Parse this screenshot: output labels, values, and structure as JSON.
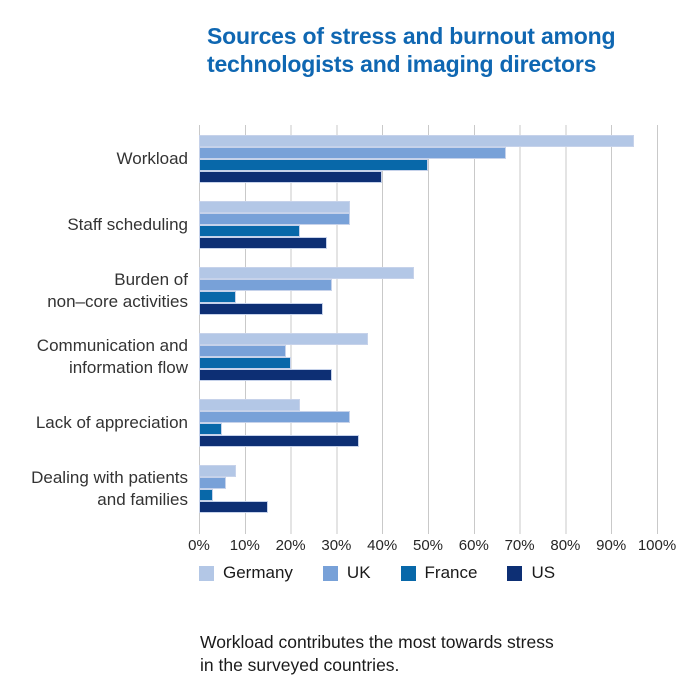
{
  "header": {
    "title_line1": "Sources of stress and burnout among",
    "title_line2": "technologists and imaging directors",
    "title_color": "#0f67b2"
  },
  "chart_data": {
    "type": "bar",
    "orientation": "horizontal",
    "title": "Sources of stress and burnout among technologists and imaging directors",
    "categories": [
      "Workload",
      "Staff scheduling",
      "Burden of non–core activities",
      "Communication and information flow",
      "Lack of appreciation",
      "Dealing with patients and families"
    ],
    "category_label_lines": [
      [
        "Workload"
      ],
      [
        "Staff scheduling"
      ],
      [
        "Burden of",
        "non–core activities"
      ],
      [
        "Communication and",
        "information flow"
      ],
      [
        "Lack of appreciation"
      ],
      [
        "Dealing with patients",
        "and families"
      ]
    ],
    "series": [
      {
        "name": "Germany",
        "color": "#b3c7e6",
        "values": [
          95,
          33,
          47,
          37,
          22,
          8
        ]
      },
      {
        "name": "UK",
        "color": "#78a1d8",
        "values": [
          67,
          33,
          29,
          19,
          33,
          6
        ]
      },
      {
        "name": "France",
        "color": "#0868a9",
        "values": [
          50,
          22,
          8,
          20,
          5,
          3
        ]
      },
      {
        "name": "US",
        "color": "#0d2f74",
        "values": [
          40,
          28,
          27,
          29,
          35,
          15
        ]
      }
    ],
    "x_ticks": [
      "0%",
      "10%",
      "20%",
      "30%",
      "40%",
      "50%",
      "60%",
      "70%",
      "80%",
      "90%",
      "100%"
    ],
    "xlim": [
      0,
      100
    ],
    "grid": "vertical",
    "legend_position": "bottom"
  },
  "footnote": {
    "text": "Workload contributes the most towards stress in the surveyed countries."
  }
}
